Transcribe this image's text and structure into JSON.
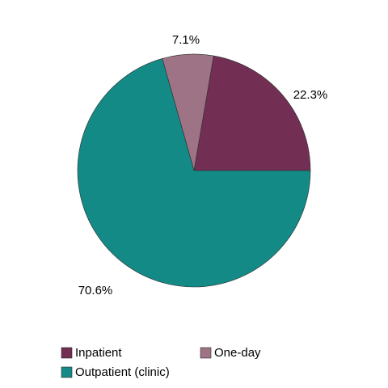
{
  "chart_data": {
    "type": "pie",
    "title": "",
    "start_angle_deg": 0,
    "direction": "counterclockwise",
    "legend_position": "bottom",
    "slices": [
      {
        "name": "Inpatient",
        "value": 22.3,
        "label": "22.3%",
        "color": "#722F53"
      },
      {
        "name": "One-day",
        "value": 7.1,
        "label": "7.1%",
        "color": "#9E7386"
      },
      {
        "name": "Outpatient (clinic)",
        "value": 70.6,
        "label": "70.6%",
        "color": "#138A86"
      }
    ]
  }
}
